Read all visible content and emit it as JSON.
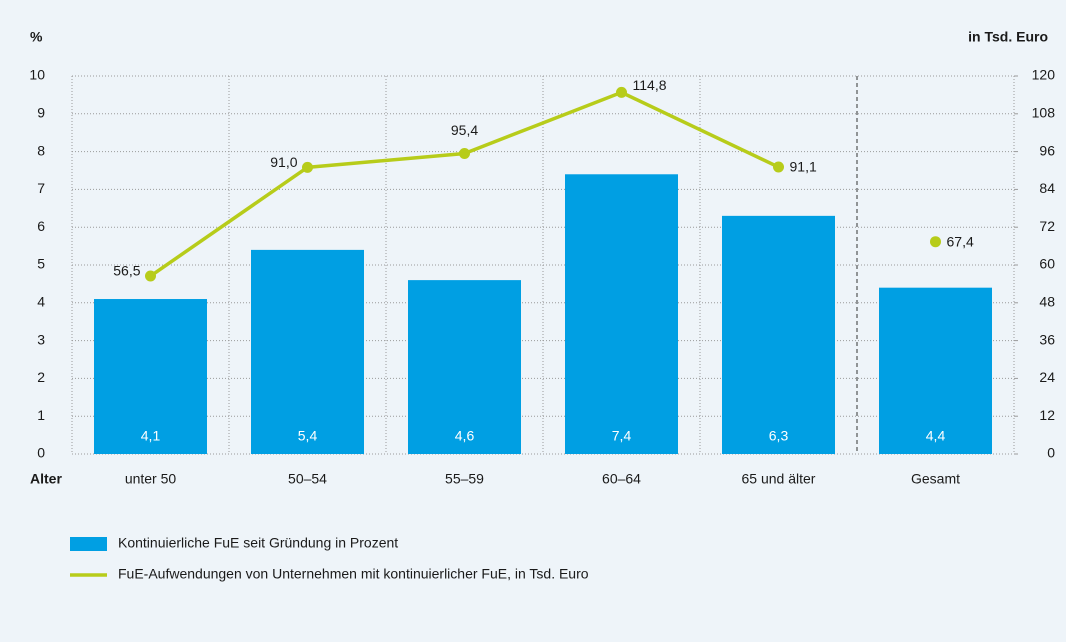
{
  "chart_data": {
    "type": "bar",
    "y_axis_label": "%",
    "y2_axis_label": "in Tsd. Euro",
    "x_axis_label": "Alter",
    "categories": [
      "unter 50",
      "50–54",
      "55–59",
      "60–64",
      "65 und älter",
      "Gesamt"
    ],
    "divider_before_category": "Gesamt",
    "series": [
      {
        "name": "Kontinuierliche FuE seit Gründung in Prozent",
        "type": "bar",
        "color": "#009fe3",
        "values": [
          4.1,
          5.4,
          4.6,
          7.4,
          6.3,
          4.4
        ],
        "value_labels": [
          "4,1",
          "5,4",
          "4,6",
          "7,4",
          "6,3",
          "4,4"
        ]
      },
      {
        "name": "FuE-Aufwendungen von Unternehmen mit kontinuierlicher FuE, in Tsd. Euro",
        "type": "line",
        "axis": "y2",
        "color": "#b7cc1a",
        "values": [
          56.5,
          91.0,
          95.4,
          114.8,
          91.1,
          67.4
        ],
        "value_labels": [
          "56,5",
          "91,0",
          "95,4",
          "114,8",
          "91,1",
          "67,4"
        ]
      }
    ],
    "ylim": [
      0,
      10
    ],
    "yticks": [
      0,
      1,
      2,
      3,
      4,
      5,
      6,
      7,
      8,
      9,
      10
    ],
    "y2lim": [
      0,
      120
    ],
    "y2ticks": [
      0,
      12,
      24,
      36,
      48,
      60,
      72,
      84,
      96,
      108,
      120
    ],
    "grid": true
  }
}
